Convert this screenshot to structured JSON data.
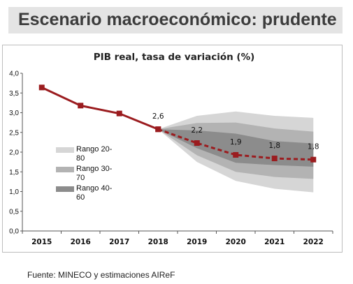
{
  "header": {
    "title": "Escenario macroeconómico: prudente"
  },
  "source": "Fuente: MINECO y estimaciones AIReF",
  "colors": {
    "line": "#9b1c1f",
    "band_outer": "#d6d6d6",
    "band_middle": "#b3b3b3",
    "band_inner": "#8c8c8c"
  },
  "chart_data": {
    "type": "line",
    "title": "PIB real,  tasa de variación (%)",
    "xlabel": "",
    "ylabel": "",
    "categories": [
      "2015",
      "2016",
      "2017",
      "2018",
      "2019",
      "2020",
      "2021",
      "2022"
    ],
    "ylim": [
      0,
      4
    ],
    "y_ticks": [
      "0,0",
      "0,5",
      "1,0",
      "1,5",
      "2,0",
      "2,5",
      "3,0",
      "3,5",
      "4,0"
    ],
    "grid": false,
    "series": [
      {
        "style": "solid",
        "values": [
          3.64,
          3.18,
          2.98,
          2.58,
          null,
          null,
          null,
          null
        ]
      },
      {
        "style": "dashed",
        "values": [
          null,
          null,
          null,
          2.58,
          2.23,
          1.93,
          1.84,
          1.81
        ]
      }
    ],
    "data_labels": [
      {
        "category": "2018",
        "text": "2,6"
      },
      {
        "category": "2019",
        "text": "2,2"
      },
      {
        "category": "2020",
        "text": "1,9"
      },
      {
        "category": "2021",
        "text": "1,8"
      },
      {
        "category": "2022",
        "text": "1,8"
      }
    ],
    "fan_bands": [
      {
        "name": "Rango 20-80",
        "from": "2018",
        "lower": [
          2.58,
          1.75,
          1.27,
          1.07,
          0.98
        ],
        "upper": [
          2.58,
          2.92,
          3.03,
          2.92,
          2.87
        ]
      },
      {
        "name": "Rango 30-70",
        "from": "2018",
        "lower": [
          2.58,
          1.92,
          1.5,
          1.37,
          1.32
        ],
        "upper": [
          2.58,
          2.74,
          2.75,
          2.6,
          2.52
        ]
      },
      {
        "name": "Rango 40-60",
        "from": "2018",
        "lower": [
          2.58,
          2.1,
          1.73,
          1.67,
          1.63
        ],
        "upper": [
          2.58,
          2.55,
          2.47,
          2.28,
          2.22
        ]
      }
    ],
    "legend": {
      "placement": "left"
    }
  }
}
